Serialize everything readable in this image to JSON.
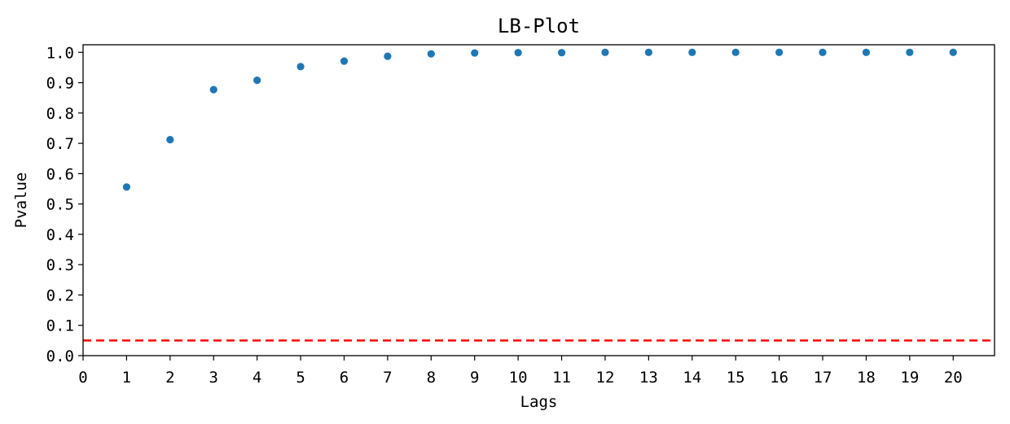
{
  "chart_data": {
    "type": "scatter",
    "title": "LB-Plot",
    "xlabel": "Lags",
    "ylabel": "Pvalue",
    "xlim": [
      0,
      20.95
    ],
    "ylim": [
      0,
      1.025
    ],
    "x_ticks": [
      0,
      1,
      2,
      3,
      4,
      5,
      6,
      7,
      8,
      9,
      10,
      11,
      12,
      13,
      14,
      15,
      16,
      17,
      18,
      19,
      20
    ],
    "y_ticks": [
      0.0,
      0.1,
      0.2,
      0.3,
      0.4,
      0.5,
      0.6,
      0.7,
      0.8,
      0.9,
      1.0
    ],
    "y_tick_labels": [
      "0.0",
      "0.1",
      "0.2",
      "0.3",
      "0.4",
      "0.5",
      "0.6",
      "0.7",
      "0.8",
      "0.9",
      "1.0"
    ],
    "grid": false,
    "series": [
      {
        "x": [
          1,
          2,
          3,
          4,
          5,
          6,
          7,
          8,
          9,
          10,
          11,
          12,
          13,
          14,
          15,
          16,
          17,
          18,
          19,
          20
        ],
        "values": [
          0.556,
          0.712,
          0.877,
          0.908,
          0.953,
          0.971,
          0.987,
          0.995,
          0.998,
          0.999,
          0.999,
          1.0,
          1.0,
          1.0,
          1.0,
          1.0,
          1.0,
          1.0,
          1.0,
          1.0
        ],
        "color": "#1f77b4"
      }
    ],
    "reference_line": {
      "orientation": "horizontal",
      "y": 0.05,
      "color": "#ff0000",
      "style": "dashed"
    }
  }
}
